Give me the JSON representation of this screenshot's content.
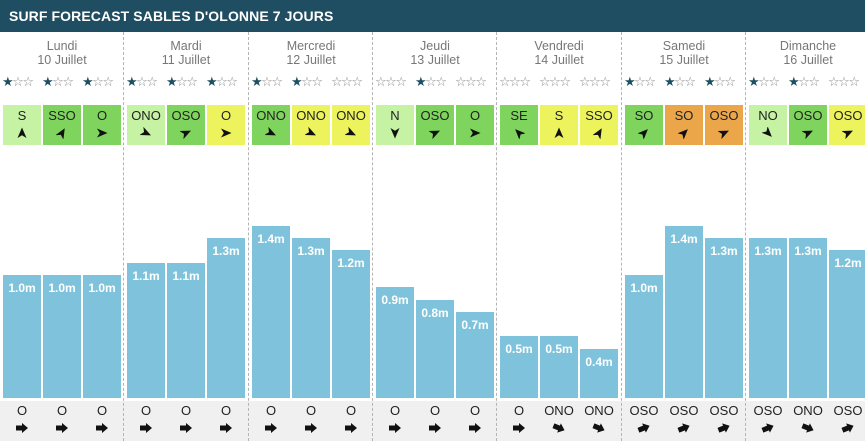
{
  "title": "SURF FORECAST SABLES D'OLONNE 7 JOURS",
  "colors": {
    "header_bg": "#1f4e63",
    "bar": "#7ec3db",
    "wind_light_green": "#c6f2a4",
    "wind_green": "#7ed45c",
    "wind_yellow": "#edf35c",
    "wind_orange": "#eba64a",
    "star_on": "#1f4e63",
    "star_off": "#8a8a8a"
  },
  "chart_data": {
    "type": "bar",
    "ylim": [
      0,
      1.85
    ],
    "unit": "m",
    "days": [
      {
        "name": "Lundi",
        "date": "10 Juillet",
        "slots": [
          {
            "stars": 1,
            "wind": "S",
            "wind_color": "wind_light_green",
            "wind_angle": 0,
            "height": 1.0,
            "label": "1.0m",
            "swell": "O",
            "swell_angle": 0
          },
          {
            "stars": 1,
            "wind": "SSO",
            "wind_color": "wind_green",
            "wind_angle": 30,
            "height": 1.0,
            "label": "1.0m",
            "swell": "O",
            "swell_angle": 0
          },
          {
            "stars": 1,
            "wind": "O",
            "wind_color": "wind_green",
            "wind_angle": 90,
            "height": 1.0,
            "label": "1.0m",
            "swell": "O",
            "swell_angle": 0
          }
        ]
      },
      {
        "name": "Mardi",
        "date": "11 Juillet",
        "slots": [
          {
            "stars": 1,
            "wind": "ONO",
            "wind_color": "wind_light_green",
            "wind_angle": 115,
            "height": 1.1,
            "label": "1.1m",
            "swell": "O",
            "swell_angle": 0
          },
          {
            "stars": 1,
            "wind": "OSO",
            "wind_color": "wind_green",
            "wind_angle": 65,
            "height": 1.1,
            "label": "1.1m",
            "swell": "O",
            "swell_angle": 0
          },
          {
            "stars": 1,
            "wind": "O",
            "wind_color": "wind_yellow",
            "wind_angle": 90,
            "height": 1.3,
            "label": "1.3m",
            "swell": "O",
            "swell_angle": 0
          }
        ]
      },
      {
        "name": "Mercredi",
        "date": "12 Juillet",
        "slots": [
          {
            "stars": 1,
            "wind": "ONO",
            "wind_color": "wind_green",
            "wind_angle": 115,
            "height": 1.4,
            "label": "1.4m",
            "swell": "O",
            "swell_angle": 0
          },
          {
            "stars": 1,
            "wind": "ONO",
            "wind_color": "wind_yellow",
            "wind_angle": 115,
            "height": 1.3,
            "label": "1.3m",
            "swell": "O",
            "swell_angle": 0
          },
          {
            "stars": 0,
            "wind": "ONO",
            "wind_color": "wind_yellow",
            "wind_angle": 115,
            "height": 1.2,
            "label": "1.2m",
            "swell": "O",
            "swell_angle": 0
          }
        ]
      },
      {
        "name": "Jeudi",
        "date": "13 Juillet",
        "slots": [
          {
            "stars": 0,
            "wind": "N",
            "wind_color": "wind_light_green",
            "wind_angle": 180,
            "height": 0.9,
            "label": "0.9m",
            "swell": "O",
            "swell_angle": 0
          },
          {
            "stars": 1,
            "wind": "OSO",
            "wind_color": "wind_green",
            "wind_angle": 65,
            "height": 0.8,
            "label": "0.8m",
            "swell": "O",
            "swell_angle": 0
          },
          {
            "stars": 0,
            "wind": "O",
            "wind_color": "wind_green",
            "wind_angle": 90,
            "height": 0.7,
            "label": "0.7m",
            "swell": "O",
            "swell_angle": 0
          }
        ]
      },
      {
        "name": "Vendredi",
        "date": "14 Juillet",
        "slots": [
          {
            "stars": 0,
            "wind": "SE",
            "wind_color": "wind_green",
            "wind_angle": -45,
            "height": 0.5,
            "label": "0.5m",
            "swell": "O",
            "swell_angle": 0
          },
          {
            "stars": 0,
            "wind": "S",
            "wind_color": "wind_yellow",
            "wind_angle": 0,
            "height": 0.5,
            "label": "0.5m",
            "swell": "ONO",
            "swell_angle": 22
          },
          {
            "stars": 0,
            "wind": "SSO",
            "wind_color": "wind_yellow",
            "wind_angle": 30,
            "height": 0.4,
            "label": "0.4m",
            "swell": "ONO",
            "swell_angle": 22
          }
        ]
      },
      {
        "name": "Samedi",
        "date": "15 Juillet",
        "slots": [
          {
            "stars": 1,
            "wind": "SO",
            "wind_color": "wind_green",
            "wind_angle": 45,
            "height": 1.0,
            "label": "1.0m",
            "swell": "OSO",
            "swell_angle": -22
          },
          {
            "stars": 1,
            "wind": "SO",
            "wind_color": "wind_orange",
            "wind_angle": 45,
            "height": 1.4,
            "label": "1.4m",
            "swell": "OSO",
            "swell_angle": -22
          },
          {
            "stars": 1,
            "wind": "OSO",
            "wind_color": "wind_orange",
            "wind_angle": 65,
            "height": 1.3,
            "label": "1.3m",
            "swell": "OSO",
            "swell_angle": -22
          }
        ]
      },
      {
        "name": "Dimanche",
        "date": "16 Juillet",
        "slots": [
          {
            "stars": 1,
            "wind": "NO",
            "wind_color": "wind_light_green",
            "wind_angle": 135,
            "height": 1.3,
            "label": "1.3m",
            "swell": "OSO",
            "swell_angle": -22
          },
          {
            "stars": 1,
            "wind": "OSO",
            "wind_color": "wind_green",
            "wind_angle": 65,
            "height": 1.3,
            "label": "1.3m",
            "swell": "ONO",
            "swell_angle": 22
          },
          {
            "stars": 0,
            "wind": "OSO",
            "wind_color": "wind_yellow",
            "wind_angle": 65,
            "height": 1.2,
            "label": "1.2m",
            "swell": "OSO",
            "swell_angle": -22
          }
        ]
      }
    ]
  }
}
